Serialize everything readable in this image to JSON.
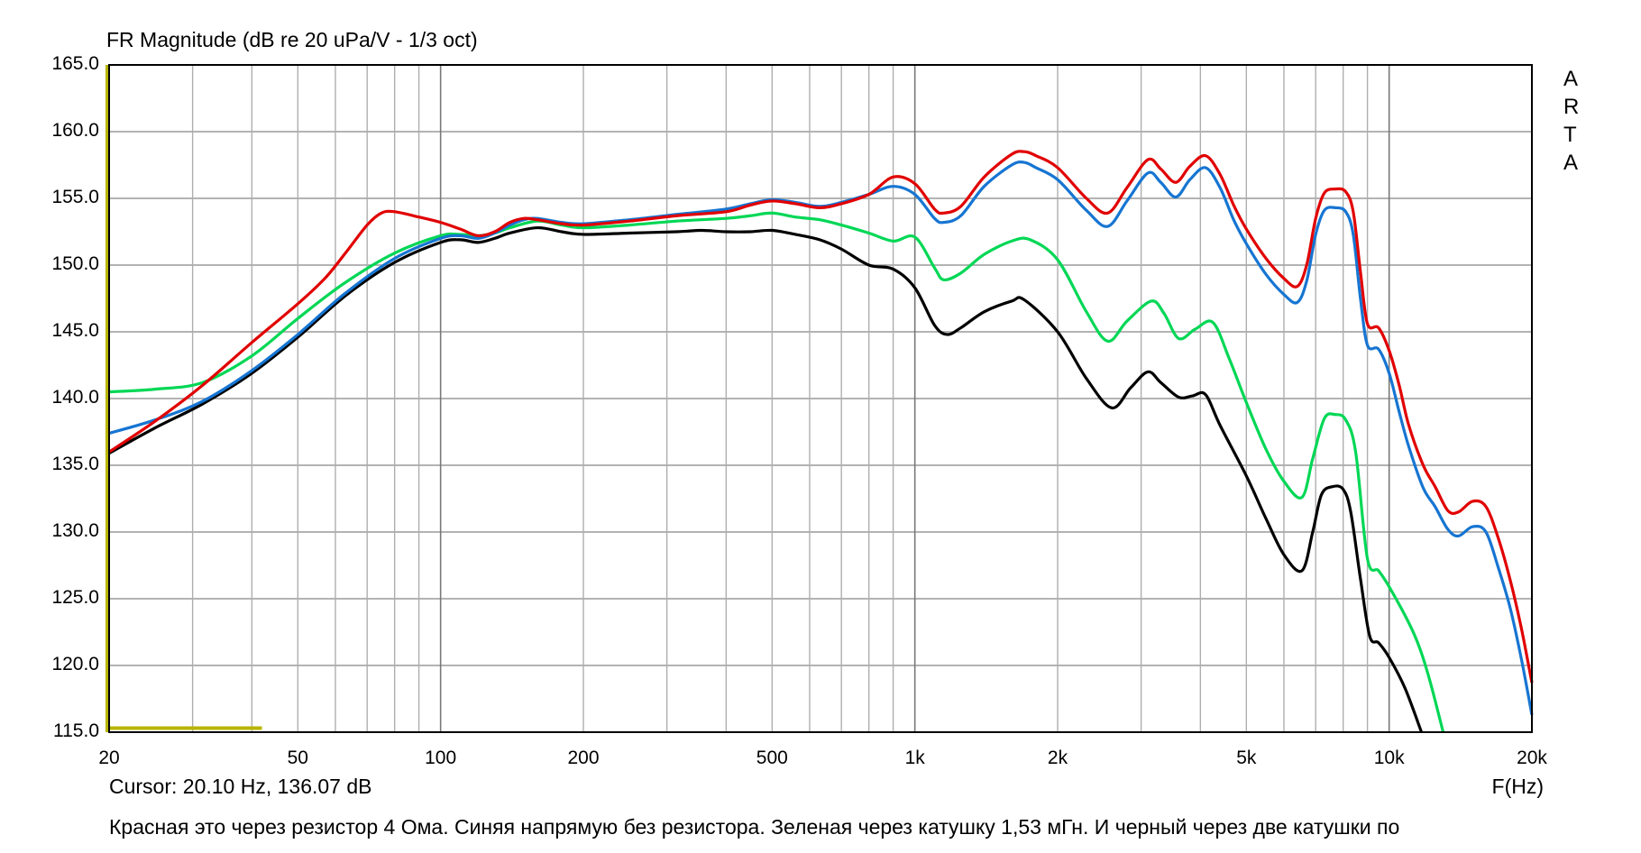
{
  "title": "FR Magnitude (dB re 20 uPa/V - 1/3 oct)",
  "cursor_readout": "Cursor: 20.10 Hz, 136.07 dB",
  "x_axis_unit": "F(Hz)",
  "note": "Красная это через резистор 4 Ома. Синяя напрямую без резистора. Зеленая через катушку 1,53 мГн. И черный через две катушки по",
  "watermark": {
    "letters": [
      "A",
      "R",
      "T",
      "A"
    ]
  },
  "colors": {
    "red": "#e10000",
    "blue": "#1675d2",
    "green": "#00d755",
    "black": "#000000",
    "grid_minor": "#aeaeae",
    "grid_decade": "#787878",
    "grid_horizontal": "#9a9a9a",
    "border": "#000000",
    "overlay_olive": "#b8b400"
  },
  "chart_data": {
    "type": "line",
    "x_scale": "log",
    "xlabel": "F(Hz)",
    "ylabel": "dB",
    "x_range": [
      20,
      20000
    ],
    "ylim": [
      115,
      165
    ],
    "y_tick_step": 5,
    "grid": true,
    "y_tick_labels": [
      "165.0",
      "160.0",
      "155.0",
      "150.0",
      "145.0",
      "140.0",
      "135.0",
      "130.0",
      "125.0",
      "120.0",
      "115.0"
    ],
    "x_tick_values": [
      20,
      50,
      100,
      200,
      500,
      1000,
      2000,
      5000,
      10000,
      20000
    ],
    "x_tick_labels": [
      "20",
      "50",
      "100",
      "200",
      "500",
      "1k",
      "2k",
      "5k",
      "10k",
      "20k"
    ],
    "grid_minor_freqs": [
      30,
      40,
      50,
      60,
      70,
      80,
      90,
      200,
      300,
      400,
      500,
      600,
      700,
      800,
      900,
      2000,
      3000,
      4000,
      5000,
      6000,
      7000,
      8000,
      9000
    ],
    "grid_decade_freqs": [
      100,
      1000,
      10000
    ],
    "overlay_marker": {
      "color": "#b8b400",
      "vertical_line_at_hz": 20,
      "bottom_segment_hz": [
        20,
        42
      ],
      "bottom_segment_db": 115.3
    },
    "series": [
      {
        "name": "red",
        "description": "через резистор 4 Ома",
        "color": "#e10000",
        "points": [
          [
            20,
            136.0
          ],
          [
            25,
            138.3
          ],
          [
            31.5,
            141.0
          ],
          [
            40,
            144.2
          ],
          [
            50,
            147.1
          ],
          [
            57,
            149.0
          ],
          [
            63,
            150.9
          ],
          [
            70,
            153.0
          ],
          [
            75,
            153.9
          ],
          [
            80,
            154.0
          ],
          [
            90,
            153.6
          ],
          [
            100,
            153.2
          ],
          [
            110,
            152.7
          ],
          [
            120,
            152.2
          ],
          [
            130,
            152.5
          ],
          [
            140,
            153.2
          ],
          [
            150,
            153.5
          ],
          [
            160,
            153.4
          ],
          [
            180,
            153.1
          ],
          [
            200,
            153.0
          ],
          [
            250,
            153.3
          ],
          [
            315,
            153.7
          ],
          [
            400,
            154.0
          ],
          [
            450,
            154.5
          ],
          [
            500,
            154.8
          ],
          [
            560,
            154.6
          ],
          [
            630,
            154.3
          ],
          [
            700,
            154.6
          ],
          [
            800,
            155.3
          ],
          [
            900,
            156.6
          ],
          [
            1000,
            156.1
          ],
          [
            1100,
            154.2
          ],
          [
            1150,
            153.9
          ],
          [
            1250,
            154.4
          ],
          [
            1400,
            156.6
          ],
          [
            1600,
            158.3
          ],
          [
            1700,
            158.5
          ],
          [
            1800,
            158.2
          ],
          [
            2000,
            157.3
          ],
          [
            2300,
            155.0
          ],
          [
            2550,
            153.9
          ],
          [
            2800,
            155.8
          ],
          [
            3100,
            157.9
          ],
          [
            3300,
            157.2
          ],
          [
            3550,
            156.2
          ],
          [
            3800,
            157.4
          ],
          [
            4100,
            158.2
          ],
          [
            4400,
            156.8
          ],
          [
            4700,
            154.5
          ],
          [
            5000,
            152.7
          ],
          [
            5500,
            150.5
          ],
          [
            6000,
            149.0
          ],
          [
            6400,
            148.4
          ],
          [
            6700,
            150.0
          ],
          [
            7000,
            153.5
          ],
          [
            7300,
            155.4
          ],
          [
            7700,
            155.7
          ],
          [
            8100,
            155.5
          ],
          [
            8400,
            154.0
          ],
          [
            8700,
            149.5
          ],
          [
            9000,
            145.6
          ],
          [
            9500,
            145.3
          ],
          [
            10000,
            143.6
          ],
          [
            10500,
            141.0
          ],
          [
            11000,
            138.0
          ],
          [
            11800,
            135.0
          ],
          [
            12500,
            133.4
          ],
          [
            13300,
            131.6
          ],
          [
            14000,
            131.5
          ],
          [
            15000,
            132.3
          ],
          [
            16000,
            131.9
          ],
          [
            17000,
            129.5
          ],
          [
            18000,
            126.4
          ],
          [
            19000,
            122.8
          ],
          [
            20000,
            118.7
          ]
        ]
      },
      {
        "name": "blue",
        "description": "напрямую без резистора",
        "color": "#1675d2",
        "points": [
          [
            20,
            137.4
          ],
          [
            25,
            138.4
          ],
          [
            31.5,
            139.8
          ],
          [
            40,
            142.1
          ],
          [
            50,
            144.8
          ],
          [
            63,
            147.9
          ],
          [
            80,
            150.5
          ],
          [
            100,
            152.0
          ],
          [
            110,
            152.2
          ],
          [
            120,
            152.0
          ],
          [
            130,
            152.4
          ],
          [
            140,
            153.0
          ],
          [
            150,
            153.4
          ],
          [
            160,
            153.5
          ],
          [
            180,
            153.2
          ],
          [
            200,
            153.1
          ],
          [
            250,
            153.4
          ],
          [
            315,
            153.8
          ],
          [
            400,
            154.2
          ],
          [
            450,
            154.6
          ],
          [
            500,
            154.9
          ],
          [
            560,
            154.7
          ],
          [
            630,
            154.4
          ],
          [
            700,
            154.7
          ],
          [
            800,
            155.3
          ],
          [
            900,
            155.9
          ],
          [
            1000,
            155.3
          ],
          [
            1100,
            153.5
          ],
          [
            1150,
            153.2
          ],
          [
            1250,
            153.7
          ],
          [
            1400,
            155.9
          ],
          [
            1600,
            157.5
          ],
          [
            1700,
            157.7
          ],
          [
            1800,
            157.3
          ],
          [
            2000,
            156.4
          ],
          [
            2300,
            154.1
          ],
          [
            2550,
            152.9
          ],
          [
            2800,
            154.8
          ],
          [
            3100,
            156.9
          ],
          [
            3300,
            156.2
          ],
          [
            3550,
            155.1
          ],
          [
            3800,
            156.4
          ],
          [
            4100,
            157.3
          ],
          [
            4400,
            155.8
          ],
          [
            4700,
            153.4
          ],
          [
            5000,
            151.6
          ],
          [
            5500,
            149.3
          ],
          [
            6000,
            147.8
          ],
          [
            6400,
            147.2
          ],
          [
            6700,
            148.8
          ],
          [
            7000,
            152.3
          ],
          [
            7300,
            154.1
          ],
          [
            7700,
            154.3
          ],
          [
            8100,
            154.0
          ],
          [
            8400,
            152.3
          ],
          [
            8700,
            147.5
          ],
          [
            9000,
            144.0
          ],
          [
            9500,
            143.7
          ],
          [
            10000,
            141.9
          ],
          [
            10500,
            139.0
          ],
          [
            11000,
            136.4
          ],
          [
            11800,
            133.3
          ],
          [
            12500,
            131.9
          ],
          [
            13300,
            130.2
          ],
          [
            14000,
            129.7
          ],
          [
            15000,
            130.4
          ],
          [
            16000,
            130.0
          ],
          [
            17000,
            127.3
          ],
          [
            18000,
            124.3
          ],
          [
            19000,
            120.5
          ],
          [
            20000,
            116.3
          ]
        ]
      },
      {
        "name": "green",
        "description": "через катушку 1,53 мГн",
        "color": "#00d755",
        "points": [
          [
            20,
            140.5
          ],
          [
            25,
            140.7
          ],
          [
            31.5,
            141.2
          ],
          [
            40,
            143.2
          ],
          [
            50,
            146.0
          ],
          [
            63,
            148.7
          ],
          [
            80,
            150.9
          ],
          [
            100,
            152.2
          ],
          [
            110,
            152.3
          ],
          [
            120,
            152.2
          ],
          [
            130,
            152.4
          ],
          [
            140,
            152.8
          ],
          [
            160,
            153.3
          ],
          [
            180,
            153.0
          ],
          [
            200,
            152.8
          ],
          [
            250,
            153.0
          ],
          [
            315,
            153.3
          ],
          [
            400,
            153.5
          ],
          [
            450,
            153.7
          ],
          [
            500,
            153.9
          ],
          [
            560,
            153.6
          ],
          [
            630,
            153.4
          ],
          [
            700,
            153.0
          ],
          [
            800,
            152.4
          ],
          [
            900,
            151.8
          ],
          [
            1000,
            152.1
          ],
          [
            1100,
            149.8
          ],
          [
            1150,
            148.9
          ],
          [
            1250,
            149.4
          ],
          [
            1400,
            150.8
          ],
          [
            1600,
            151.8
          ],
          [
            1750,
            151.9
          ],
          [
            2000,
            150.4
          ],
          [
            2300,
            146.5
          ],
          [
            2550,
            144.3
          ],
          [
            2800,
            145.8
          ],
          [
            3150,
            147.3
          ],
          [
            3350,
            146.4
          ],
          [
            3600,
            144.5
          ],
          [
            3900,
            145.2
          ],
          [
            4250,
            145.7
          ],
          [
            4600,
            143.0
          ],
          [
            5000,
            139.7
          ],
          [
            5500,
            136.2
          ],
          [
            6000,
            133.8
          ],
          [
            6550,
            132.6
          ],
          [
            6900,
            135.5
          ],
          [
            7300,
            138.5
          ],
          [
            7700,
            138.8
          ],
          [
            8100,
            138.4
          ],
          [
            8500,
            136.0
          ],
          [
            9000,
            128.0
          ],
          [
            9500,
            127.1
          ],
          [
            10000,
            125.9
          ],
          [
            11000,
            123.2
          ],
          [
            11600,
            121.3
          ],
          [
            12200,
            118.8
          ],
          [
            13000,
            115.0
          ]
        ]
      },
      {
        "name": "black",
        "description": "через две катушки",
        "color": "#000000",
        "points": [
          [
            20,
            135.9
          ],
          [
            25,
            137.8
          ],
          [
            31.5,
            139.6
          ],
          [
            40,
            141.9
          ],
          [
            50,
            144.6
          ],
          [
            63,
            147.7
          ],
          [
            80,
            150.2
          ],
          [
            100,
            151.7
          ],
          [
            110,
            151.9
          ],
          [
            120,
            151.7
          ],
          [
            130,
            152.0
          ],
          [
            140,
            152.4
          ],
          [
            160,
            152.8
          ],
          [
            180,
            152.5
          ],
          [
            200,
            152.3
          ],
          [
            250,
            152.4
          ],
          [
            315,
            152.5
          ],
          [
            355,
            152.6
          ],
          [
            400,
            152.5
          ],
          [
            450,
            152.5
          ],
          [
            500,
            152.6
          ],
          [
            560,
            152.3
          ],
          [
            630,
            151.9
          ],
          [
            700,
            151.2
          ],
          [
            800,
            150.0
          ],
          [
            900,
            149.7
          ],
          [
            1000,
            148.3
          ],
          [
            1100,
            145.5
          ],
          [
            1170,
            144.8
          ],
          [
            1250,
            145.3
          ],
          [
            1400,
            146.5
          ],
          [
            1600,
            147.3
          ],
          [
            1700,
            147.4
          ],
          [
            2000,
            145.0
          ],
          [
            2300,
            141.5
          ],
          [
            2600,
            139.3
          ],
          [
            2850,
            140.8
          ],
          [
            3100,
            142.0
          ],
          [
            3300,
            141.2
          ],
          [
            3600,
            140.1
          ],
          [
            3850,
            140.2
          ],
          [
            4100,
            140.3
          ],
          [
            4400,
            138.0
          ],
          [
            5000,
            134.2
          ],
          [
            5500,
            131.0
          ],
          [
            6000,
            128.3
          ],
          [
            6550,
            127.1
          ],
          [
            6900,
            130.0
          ],
          [
            7200,
            132.8
          ],
          [
            7600,
            133.4
          ],
          [
            8000,
            133.2
          ],
          [
            8300,
            131.5
          ],
          [
            8700,
            126.5
          ],
          [
            9100,
            122.2
          ],
          [
            9500,
            121.7
          ],
          [
            10000,
            120.6
          ],
          [
            10800,
            118.3
          ],
          [
            11700,
            115.0
          ]
        ]
      }
    ]
  }
}
